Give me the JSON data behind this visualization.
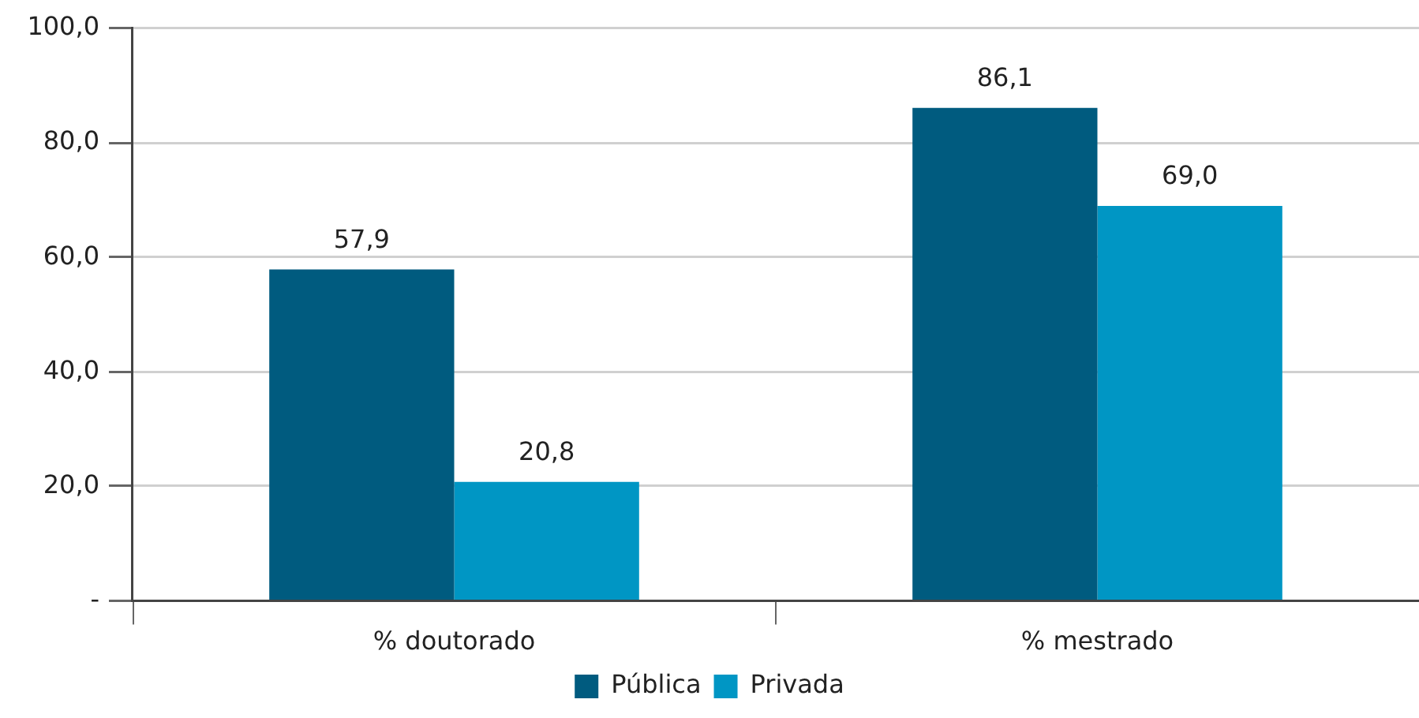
{
  "chart_data": {
    "type": "bar",
    "categories": [
      "% doutorado",
      "% mestrado"
    ],
    "series": [
      {
        "name": "Pública",
        "color": "#005b7f",
        "values": [
          57.9,
          86.1
        ],
        "value_labels": [
          "57,9",
          "86,1"
        ]
      },
      {
        "name": "Privada",
        "color": "#0096c4",
        "values": [
          20.8,
          69.0
        ],
        "value_labels": [
          "20,8",
          "69,0"
        ]
      }
    ],
    "ylim": [
      0,
      100
    ],
    "yticks": [
      {
        "value": 0,
        "label": "-"
      },
      {
        "value": 20,
        "label": "20,0"
      },
      {
        "value": 40,
        "label": "40,0"
      },
      {
        "value": 60,
        "label": "60,0"
      },
      {
        "value": 80,
        "label": "80,0"
      },
      {
        "value": 100,
        "label": "100,0"
      }
    ],
    "grid": "y",
    "legend": "bottom"
  }
}
